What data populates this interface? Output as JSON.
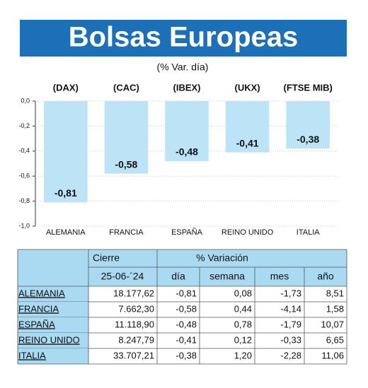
{
  "chart_data": {
    "type": "bar",
    "title": "Bolsas Europeas",
    "subtitle": "(% Var. día)",
    "categories": [
      "ALEMANIA",
      "FRANCIA",
      "ESPAÑA",
      "REINO UNIDO",
      "ITALIA"
    ],
    "tickers": [
      "(DAX)",
      "(CAC)",
      "(IBEX)",
      "(UKX)",
      "(FTSE MIB)"
    ],
    "values": [
      -0.81,
      -0.58,
      -0.48,
      -0.41,
      -0.38
    ],
    "value_labels": [
      "-0,81",
      "-0,58",
      "-0,48",
      "-0,41",
      "-0,38"
    ],
    "color": "#bde4f6",
    "ylim": [
      -1.0,
      0.0
    ],
    "yticks": [
      {
        "value": 0,
        "label": "0,0"
      },
      {
        "value": -0.2,
        "label": "-0,2"
      },
      {
        "value": -0.4,
        "label": "-0,4"
      },
      {
        "value": -0.6,
        "label": "-0,6"
      },
      {
        "value": -0.8,
        "label": "-0,8"
      },
      {
        "value": -1.0,
        "label": "-1,0"
      }
    ]
  },
  "table": {
    "groups": [
      "Cierre",
      "% Variación"
    ],
    "date": "25-06-´24",
    "columns": [
      "día",
      "semana",
      "mes",
      "año"
    ],
    "rows": [
      [
        "ALEMANIA",
        "18.177,62",
        "-0,81",
        "0,08",
        "-1,73",
        "8,51"
      ],
      [
        "FRANCIA",
        "7.662,30",
        "-0,58",
        "0,44",
        "-4,14",
        "1,58"
      ],
      [
        "ESPAÑA",
        "11.118,90",
        "-0,48",
        "0,78",
        "-1,79",
        "10,07"
      ],
      [
        "REINO UNIDO",
        "8.247,79",
        "-0,41",
        "0,12",
        "-0,33",
        "6,65"
      ],
      [
        "ITALIA",
        "33.707,21",
        "-0,38",
        "1,20",
        "-2,28",
        "11,06"
      ]
    ]
  }
}
